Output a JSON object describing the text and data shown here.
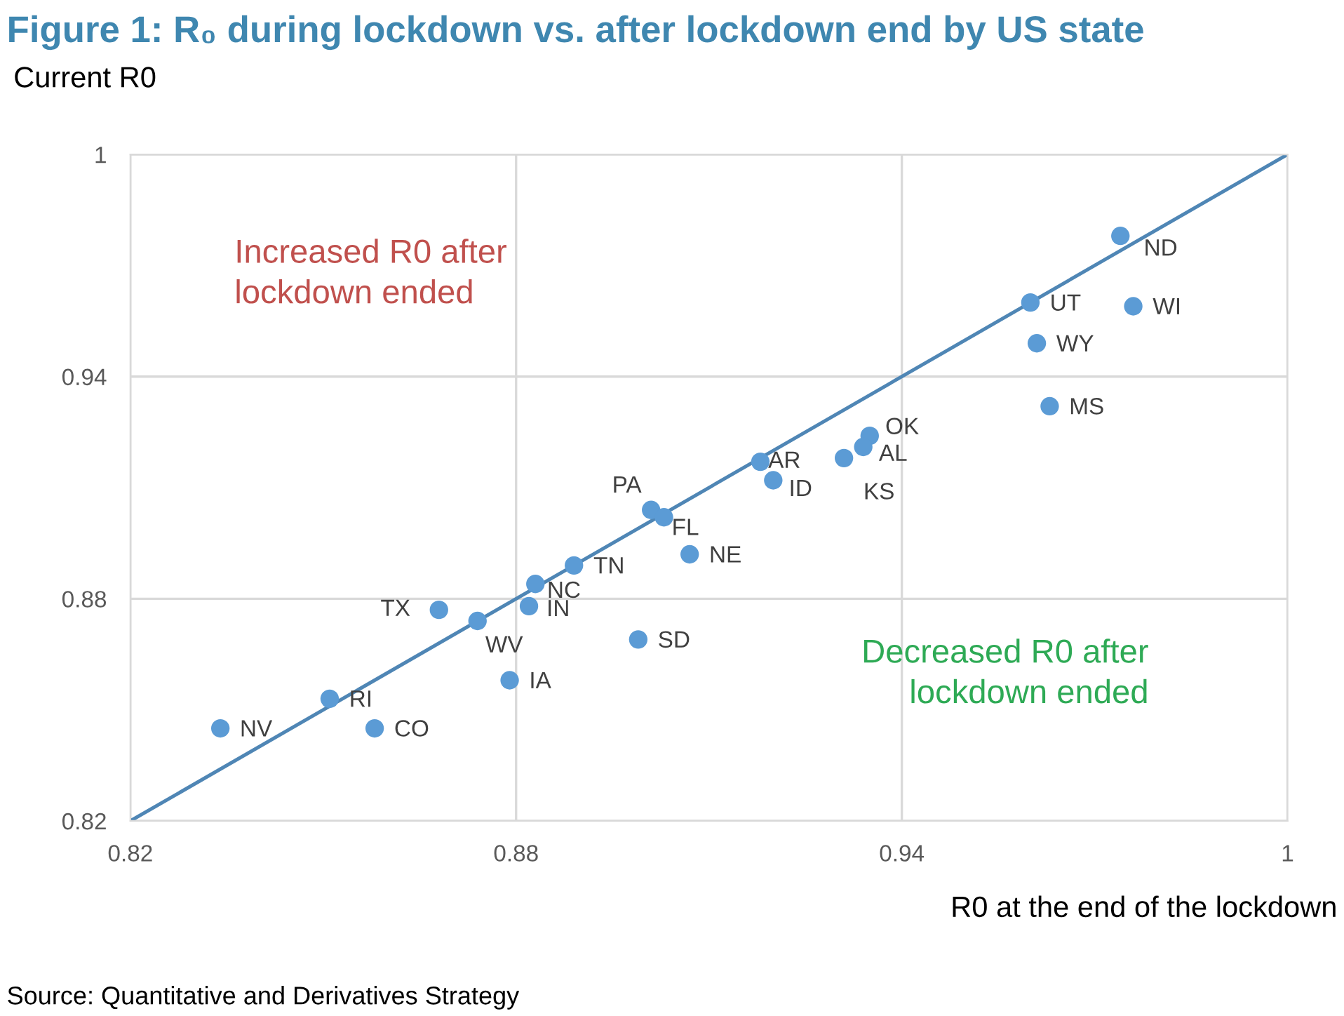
{
  "chart_data": {
    "type": "scatter",
    "title": "Figure 1: R₀ during lockdown vs. after lockdown end by US state",
    "ylabel": "Current R0",
    "xlabel": "R0 at the end of the lockdown",
    "annotations": [
      "Increased R0 after lockdown ended",
      "Decreased R0 after lockdown ended",
      "Source: Quantitative and Derivatives Strategy"
    ],
    "xlim": [
      0.82,
      1
    ],
    "ylim": [
      0.82,
      1
    ],
    "xticks": [
      0.82,
      0.88,
      0.94,
      1
    ],
    "yticks": [
      0.82,
      0.88,
      0.94,
      1
    ],
    "grid": true,
    "legend": false,
    "marker": "circle",
    "series": [
      {
        "type": "line",
        "color": "#4f86b5",
        "x": [
          0.82,
          1
        ],
        "values": [
          0.82,
          1
        ],
        "marker": "none",
        "line_style": "solid"
      },
      {
        "name": "ND",
        "color": "#5b9bd5",
        "x": [
          0.974
        ],
        "values": [
          0.978
        ]
      },
      {
        "name": "UT",
        "color": "#5b9bd5",
        "x": [
          0.96
        ],
        "values": [
          0.96
        ]
      },
      {
        "name": "WI",
        "color": "#5b9bd5",
        "x": [
          0.976
        ],
        "values": [
          0.959
        ]
      },
      {
        "name": "WY",
        "color": "#5b9bd5",
        "x": [
          0.961
        ],
        "values": [
          0.949
        ]
      },
      {
        "name": "MS",
        "color": "#5b9bd5",
        "x": [
          0.963
        ],
        "values": [
          0.932
        ]
      },
      {
        "name": "OK",
        "color": "#5b9bd5",
        "x": [
          0.935
        ],
        "values": [
          0.924
        ]
      },
      {
        "name": "AL",
        "color": "#5b9bd5",
        "x": [
          0.934
        ],
        "values": [
          0.921
        ]
      },
      {
        "name": "KS",
        "color": "#5b9bd5",
        "x": [
          0.931
        ],
        "values": [
          0.918
        ]
      },
      {
        "name": "AR",
        "color": "#5b9bd5",
        "x": [
          0.918
        ],
        "values": [
          0.917
        ]
      },
      {
        "name": "ID",
        "color": "#5b9bd5",
        "x": [
          0.92
        ],
        "values": [
          0.912
        ]
      },
      {
        "name": "PA",
        "color": "#5b9bd5",
        "x": [
          0.901
        ],
        "values": [
          0.904
        ]
      },
      {
        "name": "FL",
        "color": "#5b9bd5",
        "x": [
          0.903
        ],
        "values": [
          0.902
        ]
      },
      {
        "name": "NE",
        "color": "#5b9bd5",
        "x": [
          0.907
        ],
        "values": [
          0.892
        ]
      },
      {
        "name": "TN",
        "color": "#5b9bd5",
        "x": [
          0.889
        ],
        "values": [
          0.889
        ]
      },
      {
        "name": "NC",
        "color": "#5b9bd5",
        "x": [
          0.883
        ],
        "values": [
          0.884
        ]
      },
      {
        "name": "IN",
        "color": "#5b9bd5",
        "x": [
          0.882
        ],
        "values": [
          0.878
        ]
      },
      {
        "name": "TX",
        "color": "#5b9bd5",
        "x": [
          0.868
        ],
        "values": [
          0.877
        ]
      },
      {
        "name": "WV",
        "color": "#5b9bd5",
        "x": [
          0.874
        ],
        "values": [
          0.874
        ]
      },
      {
        "name": "SD",
        "color": "#5b9bd5",
        "x": [
          0.899
        ],
        "values": [
          0.869
        ]
      },
      {
        "name": "IA",
        "color": "#5b9bd5",
        "x": [
          0.879
        ],
        "values": [
          0.858
        ]
      },
      {
        "name": "RI",
        "color": "#5b9bd5",
        "x": [
          0.851
        ],
        "values": [
          0.853
        ]
      },
      {
        "name": "NV",
        "color": "#5b9bd5",
        "x": [
          0.834
        ],
        "values": [
          0.845
        ]
      },
      {
        "name": "CO",
        "color": "#5b9bd5",
        "x": [
          0.858
        ],
        "values": [
          0.845
        ]
      }
    ]
  }
}
